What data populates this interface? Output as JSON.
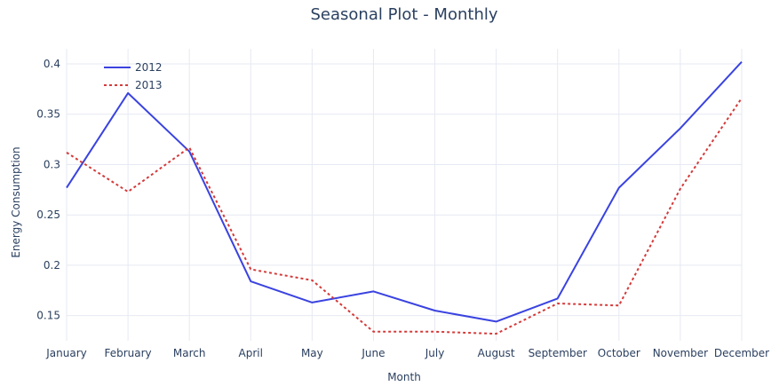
{
  "chart_data": {
    "type": "line",
    "title": "Seasonal Plot - Monthly",
    "xlabel": "Month",
    "ylabel": "Energy Consumption",
    "categories": [
      "January",
      "February",
      "March",
      "April",
      "May",
      "June",
      "July",
      "August",
      "September",
      "October",
      "November",
      "December"
    ],
    "ylim": [
      0.125,
      0.415
    ],
    "yticks": [
      0.15,
      0.2,
      0.25,
      0.3,
      0.35,
      0.4
    ],
    "ytick_labels": [
      "0.15",
      "0.2",
      "0.25",
      "0.3",
      "0.35",
      "0.4"
    ],
    "grid": true,
    "legend_position": "top-left",
    "series": [
      {
        "name": "2012",
        "color": "#3a43e0",
        "dash": "solid",
        "values": [
          0.277,
          0.371,
          0.313,
          0.184,
          0.163,
          0.174,
          0.155,
          0.144,
          0.167,
          0.277,
          0.336,
          0.402
        ]
      },
      {
        "name": "2013",
        "color": "#d43a3a",
        "dash": "dot",
        "values": [
          0.312,
          0.273,
          0.317,
          0.196,
          0.185,
          0.134,
          0.134,
          0.132,
          0.162,
          0.16,
          0.276,
          0.366
        ]
      }
    ]
  }
}
